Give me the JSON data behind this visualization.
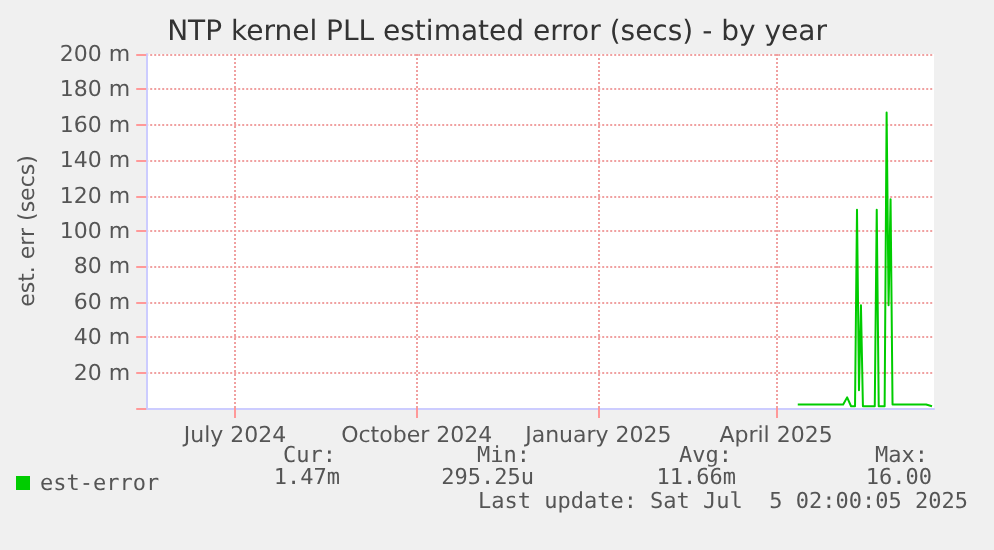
{
  "chart_data": {
    "type": "line",
    "title": "NTP kernel PLL estimated error (secs) - by year",
    "ylabel": "est. err (secs)",
    "x": [
      "2025-04-27",
      "2025-05-05",
      "2025-05-15",
      "2025-05-20",
      "2025-05-22",
      "2025-05-24",
      "2025-05-26",
      "2025-05-27",
      "2025-05-28",
      "2025-05-29",
      "2025-05-30",
      "2025-06-05",
      "2025-06-06",
      "2025-06-07",
      "2025-06-10",
      "2025-06-11",
      "2025-06-12",
      "2025-06-13",
      "2025-06-14",
      "2025-06-20",
      "2025-07-01",
      "2025-07-04"
    ],
    "series": [
      {
        "name": "est-error",
        "color": "#00cc00",
        "values": [
          2,
          2,
          2,
          2,
          6,
          1,
          1,
          112,
          10,
          58,
          1,
          1,
          112,
          1,
          1,
          167,
          58,
          118,
          2,
          2,
          2,
          1
        ]
      }
    ],
    "xlim": [
      "2024-06-01",
      "2025-07-05"
    ],
    "xticks": [
      {
        "value": "2024-07-16",
        "label": "July 2024"
      },
      {
        "value": "2024-10-16",
        "label": "October 2024"
      },
      {
        "value": "2025-01-16",
        "label": "January 2025"
      },
      {
        "value": "2025-04-16",
        "label": "April 2025"
      }
    ],
    "ylim": [
      0,
      200
    ],
    "yticks": [
      {
        "value": 0,
        "label": null
      },
      {
        "value": 20,
        "label": "20 m"
      },
      {
        "value": 40,
        "label": "40 m"
      },
      {
        "value": 60,
        "label": "60 m"
      },
      {
        "value": 80,
        "label": "80 m"
      },
      {
        "value": 100,
        "label": "100 m"
      },
      {
        "value": 120,
        "label": "120 m"
      },
      {
        "value": 140,
        "label": "140 m"
      },
      {
        "value": 160,
        "label": "160 m"
      },
      {
        "value": 180,
        "label": "180 m"
      },
      {
        "value": 200,
        "label": "200 m"
      }
    ],
    "grid": true,
    "legend": "bottom left",
    "marker": "none",
    "line_style": "solid",
    "annotations": [
      "Cur:",
      "Min:",
      "Avg:",
      "Max:",
      "1.47m",
      "295.25u",
      "11.66m",
      "16.00",
      "Last update: Sat Jul  5 02:00:05 2025"
    ]
  }
}
